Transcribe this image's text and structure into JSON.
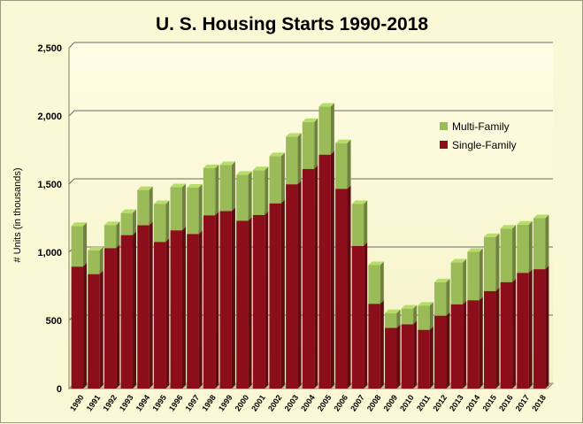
{
  "chart_data": {
    "type": "bar",
    "stacked": true,
    "title": "U. S. Housing Starts 1990-2018",
    "xlabel": "",
    "ylabel": "# Units (in  thousands)",
    "ylim": [
      0,
      2500
    ],
    "yticks": [
      "0",
      "500",
      "1,000",
      "1,500",
      "2,000",
      "2,500"
    ],
    "grid": true,
    "legend_position": "right",
    "categories": [
      "1990",
      "1991",
      "1992",
      "1993",
      "1994",
      "1995",
      "1996",
      "1997",
      "1998",
      "1999",
      "2000",
      "2001",
      "2002",
      "2003",
      "2004",
      "2005",
      "2006",
      "2007",
      "2008",
      "2009",
      "2010",
      "2011",
      "2012",
      "2013",
      "2014",
      "2015",
      "2016",
      "2017",
      "2018"
    ],
    "series": [
      {
        "name": "Single-Family",
        "color": "#8b0e1a",
        "values": [
          895,
          840,
          1030,
          1126,
          1198,
          1076,
          1161,
          1134,
          1271,
          1302,
          1231,
          1273,
          1359,
          1499,
          1611,
          1716,
          1465,
          1046,
          622,
          445,
          471,
          431,
          535,
          618,
          648,
          715,
          781,
          849,
          876
        ]
      },
      {
        "name": "Multi-Family",
        "color": "#9bbb59",
        "values": [
          298,
          174,
          170,
          162,
          259,
          278,
          316,
          340,
          346,
          338,
          338,
          329,
          346,
          349,
          345,
          352,
          336,
          309,
          284,
          109,
          116,
          178,
          245,
          307,
          355,
          397,
          393,
          354,
          374
        ]
      }
    ]
  }
}
